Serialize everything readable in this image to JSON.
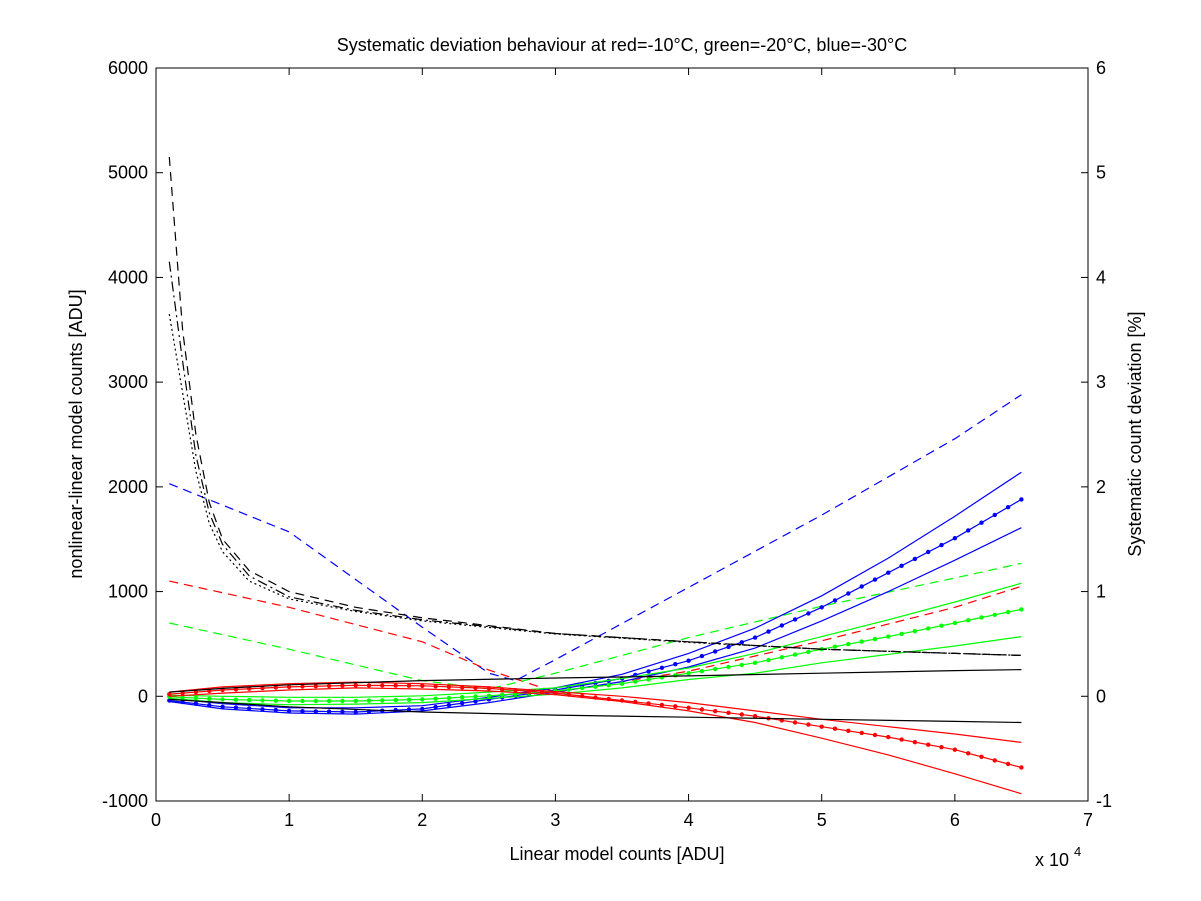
{
  "chart_data": {
    "type": "line",
    "title": "Systematic deviation behaviour at red=-10°C, green=-20°C, blue=-30°C",
    "xlabel": "Linear model counts [ADU]",
    "ylabel": "nonlinear-linear model counts [ADU]",
    "y2label": "Systematic count deviation [%]",
    "x_exponent_label": "x 10",
    "x_exponent_power": "4",
    "xlim": [
      0,
      70000
    ],
    "ylim": [
      -1000,
      6000
    ],
    "y2lim": [
      -1,
      6
    ],
    "xticks": [
      0,
      10000,
      20000,
      30000,
      40000,
      50000,
      60000,
      70000
    ],
    "xtick_labels": [
      "0",
      "1",
      "2",
      "3",
      "4",
      "5",
      "6",
      "7"
    ],
    "yticks": [
      -1000,
      0,
      1000,
      2000,
      3000,
      4000,
      5000,
      6000
    ],
    "ytick_labels": [
      "-1000",
      "0",
      "1000",
      "2000",
      "3000",
      "4000",
      "5000",
      "6000"
    ],
    "y2ticks": [
      -1,
      0,
      1,
      2,
      3,
      4,
      5,
      6
    ],
    "y2tick_labels": [
      "-1",
      "0",
      "1",
      "2",
      "3",
      "4",
      "5",
      "6"
    ],
    "grid": false,
    "colors": {
      "red": "#ff0000",
      "green": "#00ff00",
      "blue": "#0000ff",
      "black": "#000000"
    },
    "series": [
      {
        "color": "blue",
        "style": "dashed",
        "axis": "left",
        "x": [
          1000,
          10000,
          20000,
          25000,
          27000,
          30000,
          40000,
          50000,
          60000,
          65000
        ],
        "y": [
          2030,
          1570,
          660,
          220,
          150,
          350,
          1040,
          1730,
          2460,
          2880
        ]
      },
      {
        "color": "red",
        "style": "dashed",
        "axis": "left",
        "x": [
          1000,
          10000,
          20000,
          25000,
          30000,
          40000,
          50000,
          60000,
          65000
        ],
        "y": [
          1100,
          850,
          520,
          250,
          40,
          240,
          530,
          850,
          1050
        ]
      },
      {
        "color": "green",
        "style": "dashed",
        "axis": "left",
        "x": [
          1000,
          10000,
          20000,
          25000,
          30000,
          40000,
          50000,
          60000,
          65000
        ],
        "y": [
          700,
          450,
          150,
          70,
          220,
          560,
          860,
          1130,
          1270
        ]
      },
      {
        "color": "blue",
        "style": "solid-dots",
        "axis": "left",
        "x": [
          1000,
          5000,
          10000,
          15000,
          20000,
          25000,
          30000,
          35000,
          40000,
          45000,
          50000,
          55000,
          60000,
          65000
        ],
        "y": [
          -40,
          -100,
          -140,
          -150,
          -120,
          -30,
          60,
          170,
          340,
          560,
          850,
          1180,
          1510,
          1880
        ]
      },
      {
        "color": "blue",
        "style": "solid",
        "axis": "left",
        "x": [
          1000,
          5000,
          10000,
          15000,
          20000,
          25000,
          30000,
          35000,
          40000,
          45000,
          50000,
          55000,
          60000,
          65000
        ],
        "y": [
          -20,
          -70,
          -110,
          -110,
          -90,
          -10,
          80,
          210,
          410,
          650,
          960,
          1320,
          1720,
          2140
        ]
      },
      {
        "color": "blue",
        "style": "solid",
        "axis": "left",
        "x": [
          1000,
          5000,
          10000,
          15000,
          20000,
          25000,
          30000,
          35000,
          40000,
          45000,
          50000,
          55000,
          60000,
          65000
        ],
        "y": [
          -50,
          -120,
          -160,
          -170,
          -140,
          -60,
          40,
          140,
          280,
          460,
          720,
          1000,
          1300,
          1610
        ]
      },
      {
        "color": "green",
        "style": "solid-dots",
        "axis": "left",
        "x": [
          1000,
          5000,
          10000,
          15000,
          20000,
          25000,
          30000,
          35000,
          40000,
          45000,
          50000,
          55000,
          60000,
          65000
        ],
        "y": [
          -5,
          -30,
          -45,
          -45,
          -30,
          5,
          50,
          120,
          220,
          320,
          450,
          570,
          700,
          830
        ]
      },
      {
        "color": "green",
        "style": "solid",
        "axis": "left",
        "x": [
          1000,
          5000,
          10000,
          15000,
          20000,
          25000,
          30000,
          35000,
          40000,
          45000,
          50000,
          55000,
          60000,
          65000
        ],
        "y": [
          10,
          0,
          -10,
          -10,
          5,
          40,
          80,
          170,
          270,
          410,
          570,
          730,
          900,
          1080
        ]
      },
      {
        "color": "green",
        "style": "solid",
        "axis": "left",
        "x": [
          1000,
          5000,
          10000,
          15000,
          20000,
          25000,
          30000,
          35000,
          40000,
          45000,
          50000,
          55000,
          60000,
          65000
        ],
        "y": [
          -20,
          -60,
          -80,
          -75,
          -60,
          -20,
          20,
          80,
          160,
          220,
          320,
          400,
          480,
          570
        ]
      },
      {
        "color": "red",
        "style": "solid-dots",
        "axis": "left",
        "x": [
          1000,
          5000,
          10000,
          15000,
          20000,
          25000,
          30000,
          35000,
          40000,
          45000,
          50000,
          55000,
          60000,
          65000
        ],
        "y": [
          20,
          60,
          90,
          105,
          100,
          75,
          30,
          -40,
          -110,
          -190,
          -290,
          -390,
          -510,
          -680
        ]
      },
      {
        "color": "red",
        "style": "solid",
        "axis": "left",
        "x": [
          1000,
          5000,
          10000,
          15000,
          20000,
          25000,
          30000,
          35000,
          40000,
          45000,
          50000,
          55000,
          60000,
          65000
        ],
        "y": [
          40,
          90,
          120,
          135,
          120,
          90,
          45,
          0,
          -60,
          -140,
          -220,
          -290,
          -360,
          -440
        ]
      },
      {
        "color": "red",
        "style": "solid",
        "axis": "left",
        "x": [
          1000,
          5000,
          10000,
          15000,
          20000,
          25000,
          30000,
          35000,
          40000,
          45000,
          50000,
          55000,
          60000,
          65000
        ],
        "y": [
          0,
          30,
          60,
          80,
          70,
          50,
          15,
          -50,
          -140,
          -250,
          -400,
          -560,
          -740,
          -930
        ]
      },
      {
        "color": "black",
        "style": "solid",
        "axis": "left",
        "x": [
          1000,
          5000,
          10000,
          20000,
          30000,
          40000,
          50000,
          60000,
          65000
        ],
        "y": [
          40,
          75,
          110,
          150,
          175,
          195,
          220,
          245,
          255
        ]
      },
      {
        "color": "black",
        "style": "solid",
        "axis": "left",
        "x": [
          1000,
          5000,
          10000,
          20000,
          30000,
          40000,
          50000,
          60000,
          65000
        ],
        "y": [
          -30,
          -60,
          -100,
          -150,
          -180,
          -200,
          -220,
          -240,
          -250
        ]
      },
      {
        "color": "black",
        "style": "dashed",
        "axis": "left",
        "x": [
          1000,
          2000,
          3000,
          4000,
          5000,
          7000,
          10000,
          15000,
          20000,
          30000,
          40000,
          50000,
          60000,
          65000
        ],
        "y": [
          5150,
          3500,
          2500,
          1850,
          1500,
          1200,
          1000,
          850,
          750,
          600,
          520,
          450,
          410,
          390
        ]
      },
      {
        "color": "black",
        "style": "dashdot",
        "axis": "left",
        "x": [
          1000,
          2000,
          3000,
          4000,
          5000,
          7000,
          10000,
          15000,
          20000,
          30000,
          40000,
          50000,
          60000,
          65000
        ],
        "y": [
          4150,
          3200,
          2300,
          1750,
          1450,
          1150,
          950,
          820,
          730,
          600,
          520,
          450,
          410,
          390
        ]
      },
      {
        "color": "black",
        "style": "dotted",
        "axis": "left",
        "x": [
          1000,
          2000,
          3000,
          4000,
          5000,
          7000,
          10000,
          15000,
          20000,
          30000,
          40000,
          50000,
          60000,
          65000
        ],
        "y": [
          3650,
          2900,
          2150,
          1650,
          1380,
          1100,
          930,
          810,
          720,
          595,
          515,
          450,
          410,
          390
        ]
      }
    ]
  }
}
